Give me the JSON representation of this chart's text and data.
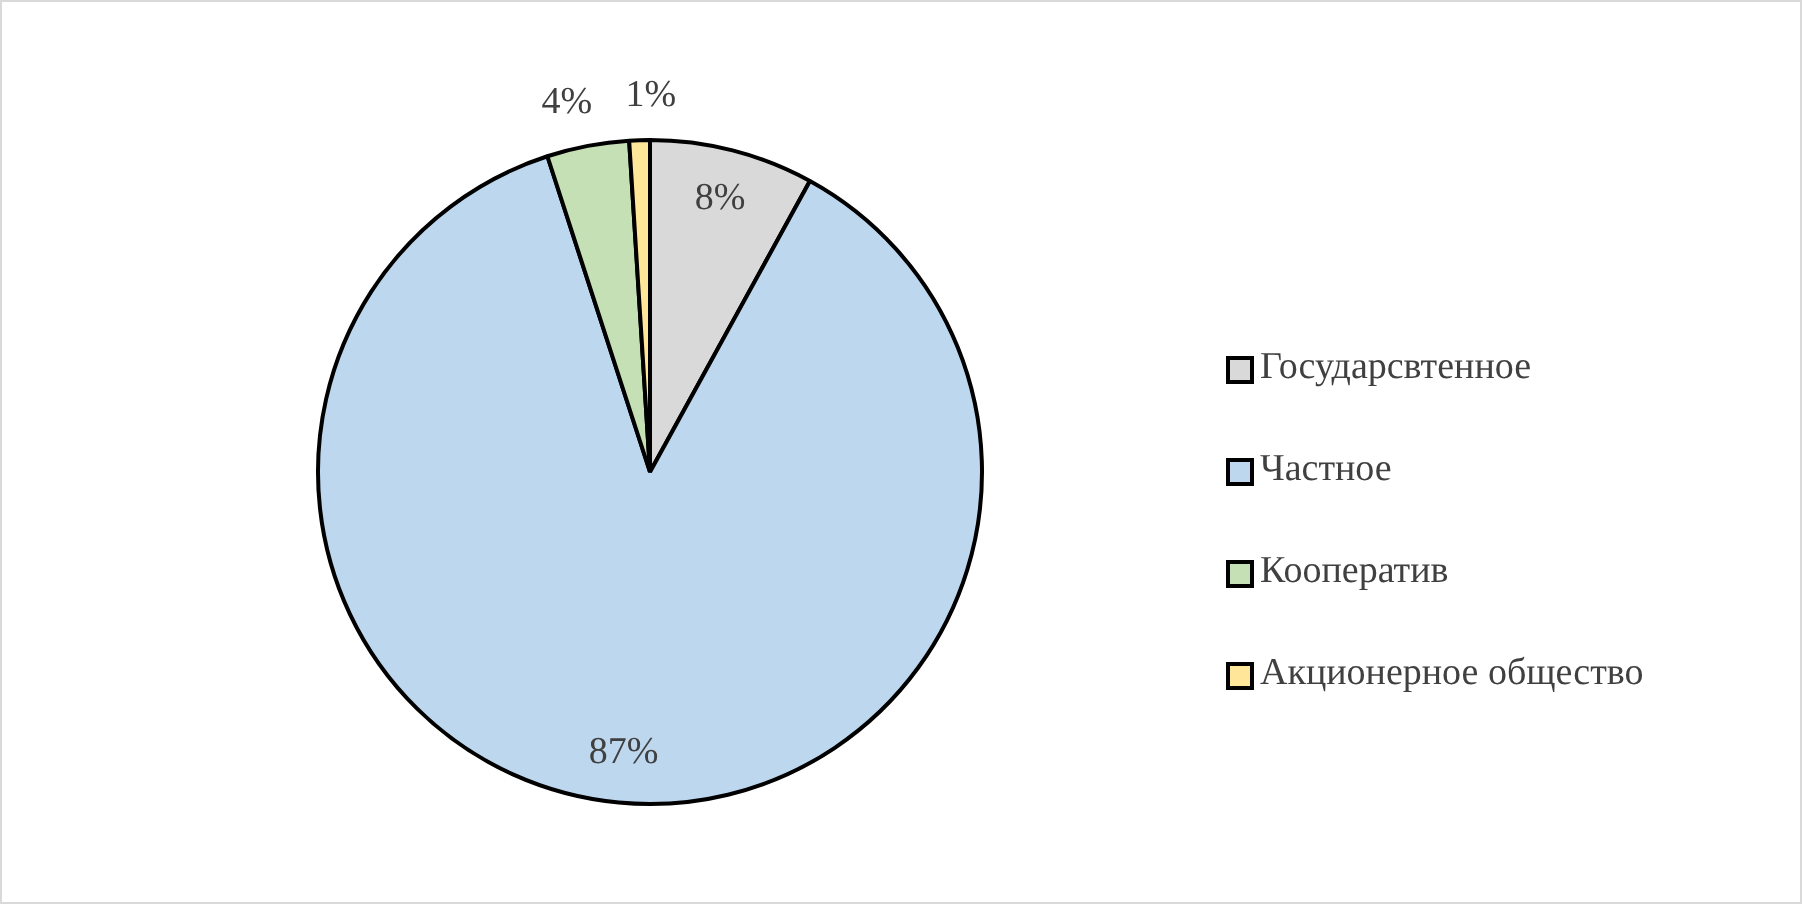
{
  "chart_data": {
    "type": "pie",
    "categories": [
      "Государсвтенное",
      "Частное",
      "Кооператив",
      "Акционерное общество"
    ],
    "values": [
      8,
      87,
      4,
      1
    ],
    "colors": [
      "#d9d9d9",
      "#bdd7ee",
      "#c5e0b4",
      "#ffe699"
    ],
    "value_labels": [
      "8%",
      "87%",
      "4%",
      "1%"
    ],
    "legend": "right"
  }
}
